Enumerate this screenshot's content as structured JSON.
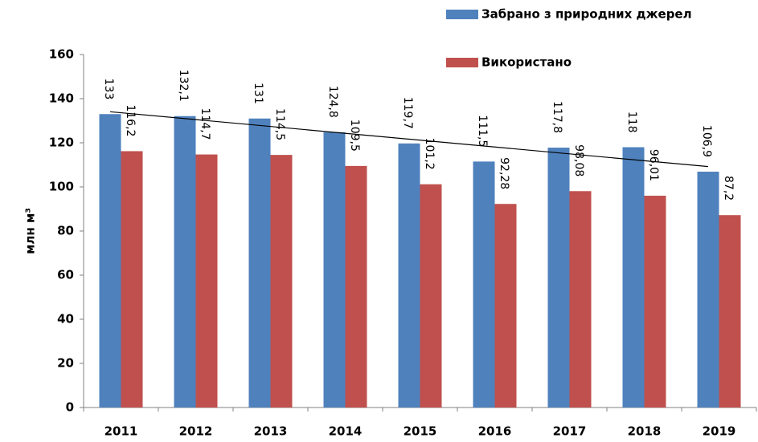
{
  "chart_data": {
    "type": "bar",
    "categories": [
      "2011",
      "2012",
      "2013",
      "2014",
      "2015",
      "2016",
      "2017",
      "2018",
      "2019"
    ],
    "y_label": "млн м³",
    "series": [
      {
        "name": "Забрано з природних джерел",
        "color": "#4f81bd",
        "trendline": "linear",
        "trendline_color": "#000000",
        "values": [
          133,
          132.1,
          131,
          124.8,
          119.7,
          111.5,
          117.8,
          118,
          106.9
        ],
        "value_labels": [
          "133",
          "132,1",
          "131",
          "124,8",
          "119,7",
          "111,5",
          "117,8",
          "118",
          "106,9"
        ]
      },
      {
        "name": "Використано",
        "color": "#c0504d",
        "values": [
          116.2,
          114.7,
          114.5,
          109.5,
          101.2,
          92.28,
          98.08,
          96.01,
          87.2
        ],
        "value_labels": [
          "116,2",
          "114,7",
          "114,5",
          "109,5",
          "101,2",
          "92,28",
          "98,08",
          "96,01",
          "87,2"
        ]
      }
    ],
    "ylim": [
      0,
      160
    ],
    "yticks": [
      0,
      20,
      40,
      60,
      80,
      100,
      120,
      140,
      160
    ],
    "grid": false
  }
}
